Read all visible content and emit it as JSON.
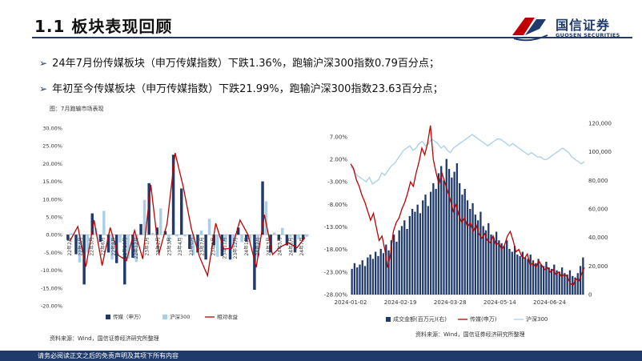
{
  "header": {
    "title": "1.1  板块表现回顾",
    "logo_cn": "国信证券",
    "logo_en": "GUOSEN SECURITIES"
  },
  "bullets": [
    "24年7月份传媒板块（申万传媒指数）下跌1.36%，跑输沪深300指数0.79百分点；",
    "年初至今传媒板块（申万传媒指数）下跌21.99%，跑输沪深300指数23.63百分点；"
  ],
  "bullet_marker": "➢",
  "figure_label": "图：7月跑输市场表现",
  "source_left": "资料来源：Wind，国信证券经济研究所整理",
  "source_right": "资料来源：Wind，国信证券经济研究所整理",
  "footer": "请务必阅读正文之后的免责声明及其项下所有内容",
  "colors": {
    "navy": "#1f3a6b",
    "light_blue": "#a9cfe8",
    "red": "#c00000"
  },
  "chart_data": [
    {
      "type": "bar",
      "categories": [
        "22年2月",
        "22年3月",
        "22年4月",
        "22年5月",
        "22年6月",
        "22年7月",
        "22年8月",
        "22年9月",
        "22年10月",
        "22年11月",
        "22年12月",
        "23年1月",
        "23年2月",
        "23年3月",
        "23年4月",
        "23年5月",
        "23年6月",
        "23年7月",
        "23年8月",
        "23年9月",
        "23年10月",
        "23年11月",
        "23年12月",
        "24年1月",
        "24年2月",
        "24年3月",
        "24年4月",
        "24年5月",
        "24年6月",
        "24年7月"
      ],
      "tick_labels": [
        "22年2月",
        "22年4月",
        "22年5月",
        "22年6月",
        "22年8月",
        "22年10月",
        "22年12月",
        "23年1月",
        "23年2月",
        "23年3月",
        "23年4月",
        "23年6月",
        "23年7月",
        "23年9月",
        "23年11月",
        "23年12月",
        "24年1月",
        "24年2月",
        "24年3月",
        "24年5月",
        "24年6月",
        "24年7月"
      ],
      "series": [
        {
          "name": "传媒（申万）",
          "values": [
            -1.5,
            -5.5,
            -14.0,
            6.0,
            -2.0,
            -5.0,
            -8.0,
            -14.0,
            -6.5,
            3.0,
            14.5,
            2.0,
            1.0,
            22.5,
            13.0,
            -4.0,
            -5.0,
            -7.0,
            -3.0,
            -6.0,
            -7.0,
            2.0,
            -2.0,
            -15.5,
            15.0,
            -5.0,
            -1.5,
            -3.0,
            -5.0,
            -1.4
          ]
        },
        {
          "name": "沪深300",
          "values": [
            0.4,
            -7.8,
            -5.0,
            1.9,
            6.7,
            -7.0,
            -2.2,
            -6.7,
            -7.7,
            9.8,
            0.5,
            7.4,
            -2.1,
            -0.5,
            -0.5,
            -5.7,
            1.2,
            4.5,
            -6.2,
            -2.0,
            -3.2,
            -2.1,
            -1.9,
            -6.3,
            9.4,
            0.6,
            1.9,
            -0.7,
            -1.3,
            -0.6
          ]
        },
        {
          "name": "相对收益",
          "values": [
            -1.9,
            2.3,
            -9.0,
            4.1,
            -8.7,
            2.0,
            -5.8,
            -7.3,
            1.2,
            -6.8,
            14.0,
            -5.4,
            3.1,
            23.0,
            13.5,
            1.7,
            -6.2,
            -11.5,
            3.2,
            -4.0,
            -3.8,
            4.1,
            -0.1,
            -9.2,
            5.6,
            -5.6,
            -3.4,
            -2.3,
            -3.7,
            -0.8
          ]
        }
      ],
      "ylim": [
        -20,
        30
      ],
      "yticks": [
        "-20.00%",
        "-15.00%",
        "-10.00%",
        "-5.00%",
        "0.00%",
        "5.00%",
        "10.00%",
        "15.00%",
        "20.00%",
        "25.00%",
        "30.00%"
      ],
      "legend_position": "bottom"
    },
    {
      "type": "line",
      "x_tick_labels": [
        "2024-01-02",
        "2024-02-19",
        "2024-03-28",
        "2024-05-14",
        "2024-06-24"
      ],
      "left_axis_ticks": [
        "-28.00%",
        "-23.00%",
        "-18.00%",
        "-13.00%",
        "-8.00%",
        "-3.00%",
        "2.00%",
        "7.00%"
      ],
      "right_axis_ticks": [
        "0",
        "20,000",
        "40,000",
        "60,000",
        "80,000",
        "100,000",
        "120,000"
      ],
      "left_ylim": [
        -28,
        10
      ],
      "right_ylim": [
        0,
        120000
      ],
      "series": [
        {
          "name": "成交金额(百万元)(右)",
          "kind": "bar",
          "axis": "right",
          "values": [
            18000,
            22000,
            19000,
            21000,
            24000,
            20000,
            26000,
            28000,
            25000,
            30000,
            27000,
            32000,
            29000,
            35000,
            31000,
            38000,
            42000,
            37000,
            45000,
            48000,
            52000,
            46000,
            55000,
            60000,
            58000,
            63000,
            57000,
            66000,
            70000,
            62000,
            72000,
            78000,
            74000,
            85000,
            90000,
            80000,
            95000,
            88000,
            82000,
            86000,
            92000,
            78000,
            70000,
            74000,
            66000,
            60000,
            64000,
            56000,
            52000,
            58000,
            48000,
            45000,
            50000,
            42000,
            40000,
            44000,
            38000,
            36000,
            34000,
            38000,
            32000,
            30000,
            34000,
            28000,
            27000,
            30000,
            26000,
            25000,
            28000,
            24000,
            22000,
            25000,
            21000,
            20000,
            23000,
            19000,
            18000,
            21000,
            17000,
            16000,
            19000,
            15000,
            14000,
            17000,
            13000,
            12000,
            15000,
            20000,
            26000
          ]
        },
        {
          "name": "传媒(申万)",
          "kind": "line",
          "axis": "left",
          "values": [
            1.0,
            0.0,
            -2.5,
            -4.0,
            -6.0,
            -7.5,
            -9.5,
            -11.5,
            -10.0,
            -13.0,
            -16.0,
            -15.0,
            -18.0,
            -22.0,
            -19.0,
            -14.0,
            -12.0,
            -11.0,
            -9.0,
            -7.5,
            -5.5,
            -3.0,
            -4.0,
            -1.0,
            1.5,
            4.5,
            3.0,
            5.5,
            9.5,
            2.0,
            -1.0,
            -3.5,
            -1.0,
            -3.0,
            -5.0,
            -7.0,
            -9.5,
            -8.0,
            -10.5,
            -12.0,
            -11.0,
            -13.0,
            -12.0,
            -14.0,
            -12.5,
            -14.5,
            -15.5,
            -14.5,
            -16.0,
            -16.5,
            -15.0,
            -17.0,
            -16.5,
            -18.0,
            -17.0,
            -15.0,
            -14.0,
            -16.0,
            -18.5,
            -18.0,
            -19.5,
            -20.0,
            -19.0,
            -21.5,
            -21.0,
            -22.0,
            -20.5,
            -21.5,
            -22.5,
            -22.0,
            -23.0,
            -22.5,
            -23.5,
            -23.0,
            -24.0,
            -23.5,
            -24.0,
            -25.5,
            -26.0,
            -24.5,
            -25.0,
            -23.5,
            -22.0
          ]
        },
        {
          "name": "沪深300",
          "kind": "line",
          "axis": "left",
          "values": [
            0.5,
            -0.5,
            -1.5,
            -2.0,
            -2.5,
            -3.0,
            -2.0,
            -3.5,
            -3.0,
            -2.5,
            -1.0,
            -1.5,
            -0.5,
            0.5,
            1.0,
            2.0,
            3.0,
            4.0,
            4.5,
            5.0,
            4.0,
            4.5,
            5.5,
            6.0,
            5.0,
            5.5,
            6.5,
            6.0,
            5.5,
            4.5,
            5.0,
            4.0,
            3.5,
            4.5,
            5.0,
            5.5,
            6.0,
            6.5,
            7.0,
            7.5,
            7.0,
            6.5,
            6.0,
            5.5,
            5.0,
            5.5,
            6.0,
            6.5,
            6.5,
            6.0,
            5.5,
            5.0,
            5.5,
            5.0,
            4.5,
            4.0,
            3.5,
            3.0,
            3.5,
            3.0,
            2.5,
            2.5,
            2.0,
            2.0,
            2.5,
            3.0,
            3.5,
            4.0,
            4.5,
            4.0,
            3.5,
            2.5,
            2.0,
            1.5,
            1.0,
            1.5
          ]
        }
      ],
      "legend_position": "bottom"
    }
  ]
}
